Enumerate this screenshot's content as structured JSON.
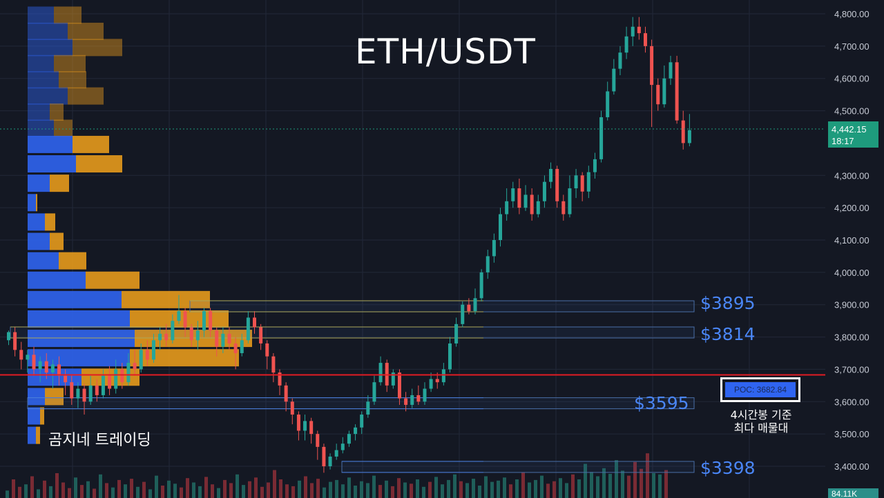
{
  "title": "ETH/USDT",
  "watermark": "곰지네 트레이딩",
  "poc": {
    "label": "POC: 3682.84",
    "value": 3682.84,
    "note_line1": "4시간봉 기준",
    "note_line2": "최다 매물대"
  },
  "current_price": {
    "value": "4,442.15",
    "countdown": "18:17"
  },
  "volume_label": "84.11K",
  "levels": [
    {
      "label": "$3895",
      "price": 3895,
      "color": "#d8c23a"
    },
    {
      "label": "$3814",
      "price": 3814,
      "color": "#d8c23a"
    },
    {
      "label": "$3595",
      "price": 3595,
      "color": "#4a86f7"
    },
    {
      "label": "$3398",
      "price": 3398,
      "color": "#4a86f7"
    }
  ],
  "colors": {
    "up": "#26a69a",
    "down": "#ef5350",
    "poc_line": "#e31b23",
    "vp_blue": "#2f64f0",
    "vp_orange": "#e69a1c"
  },
  "chart_data": {
    "type": "candlestick",
    "y_axis": {
      "ticks": [
        "4,800.00",
        "4,700.00",
        "4,600.00",
        "4,500.00",
        "4,300.00",
        "4,200.00",
        "4,100.00",
        "4,000.00",
        "3,900.00",
        "3,800.00",
        "3,700.00",
        "3,600.00",
        "3,500.00",
        "3,400.00"
      ],
      "ylim": [
        3385,
        4830
      ]
    },
    "grid": true,
    "volume_profile": [
      {
        "price": 4800,
        "buy": 38,
        "sell": 40
      },
      {
        "price": 4750,
        "buy": 58,
        "sell": 52
      },
      {
        "price": 4700,
        "buy": 65,
        "sell": 72
      },
      {
        "price": 4650,
        "buy": 38,
        "sell": 46
      },
      {
        "price": 4600,
        "buy": 45,
        "sell": 40
      },
      {
        "price": 4550,
        "buy": 58,
        "sell": 52
      },
      {
        "price": 4500,
        "buy": 32,
        "sell": 20
      },
      {
        "price": 4450,
        "buy": 38,
        "sell": 27
      },
      {
        "price": 4400,
        "buy": 65,
        "sell": 53
      },
      {
        "price": 4340,
        "buy": 70,
        "sell": 67
      },
      {
        "price": 4280,
        "buy": 32,
        "sell": 28
      },
      {
        "price": 4220,
        "buy": 12,
        "sell": 2
      },
      {
        "price": 4160,
        "buy": 25,
        "sell": 15
      },
      {
        "price": 4100,
        "buy": 32,
        "sell": 20
      },
      {
        "price": 4040,
        "buy": 45,
        "sell": 40
      },
      {
        "price": 3980,
        "buy": 84,
        "sell": 78
      },
      {
        "price": 3920,
        "buy": 136,
        "sell": 128
      },
      {
        "price": 3860,
        "buy": 148,
        "sell": 143
      },
      {
        "price": 3800,
        "buy": 155,
        "sell": 170
      },
      {
        "price": 3740,
        "buy": 148,
        "sell": 158
      },
      {
        "price": 3680,
        "buy": 78,
        "sell": 84
      },
      {
        "price": 3620,
        "buy": 25,
        "sell": 27
      },
      {
        "price": 3560,
        "buy": 18,
        "sell": 6
      },
      {
        "price": 3500,
        "buy": 12,
        "sell": 6
      }
    ],
    "candles": [
      [
        3790,
        3815,
        3775,
        3820
      ],
      [
        3815,
        3760,
        3740,
        3830
      ],
      [
        3760,
        3730,
        3700,
        3785
      ],
      [
        3730,
        3745,
        3690,
        3760
      ],
      [
        3745,
        3700,
        3680,
        3770
      ],
      [
        3700,
        3725,
        3660,
        3740
      ],
      [
        3725,
        3690,
        3670,
        3750
      ],
      [
        3690,
        3715,
        3640,
        3730
      ],
      [
        3715,
        3680,
        3650,
        3740
      ],
      [
        3680,
        3660,
        3620,
        3700
      ],
      [
        3660,
        3610,
        3590,
        3680
      ],
      [
        3610,
        3640,
        3580,
        3660
      ],
      [
        3640,
        3600,
        3560,
        3655
      ],
      [
        3600,
        3650,
        3590,
        3680
      ],
      [
        3650,
        3620,
        3600,
        3670
      ],
      [
        3620,
        3680,
        3610,
        3700
      ],
      [
        3680,
        3640,
        3620,
        3710
      ],
      [
        3640,
        3700,
        3625,
        3730
      ],
      [
        3700,
        3660,
        3640,
        3720
      ],
      [
        3660,
        3720,
        3650,
        3750
      ],
      [
        3720,
        3700,
        3680,
        3760
      ],
      [
        3700,
        3760,
        3690,
        3780
      ],
      [
        3760,
        3730,
        3710,
        3790
      ],
      [
        3730,
        3790,
        3720,
        3810
      ],
      [
        3790,
        3810,
        3760,
        3830
      ],
      [
        3810,
        3790,
        3770,
        3840
      ],
      [
        3790,
        3850,
        3780,
        3870
      ],
      [
        3850,
        3880,
        3840,
        3930
      ],
      [
        3880,
        3830,
        3800,
        3890
      ],
      [
        3830,
        3790,
        3770,
        3840
      ],
      [
        3790,
        3820,
        3760,
        3850
      ],
      [
        3820,
        3880,
        3800,
        3890
      ],
      [
        3880,
        3820,
        3800,
        3890
      ],
      [
        3820,
        3770,
        3740,
        3830
      ],
      [
        3770,
        3810,
        3750,
        3830
      ],
      [
        3810,
        3780,
        3760,
        3830
      ],
      [
        3780,
        3750,
        3700,
        3800
      ],
      [
        3750,
        3790,
        3740,
        3810
      ],
      [
        3790,
        3860,
        3780,
        3880
      ],
      [
        3860,
        3830,
        3810,
        3880
      ],
      [
        3830,
        3780,
        3760,
        3840
      ],
      [
        3780,
        3740,
        3700,
        3790
      ],
      [
        3740,
        3690,
        3660,
        3750
      ],
      [
        3690,
        3650,
        3620,
        3700
      ],
      [
        3650,
        3600,
        3570,
        3660
      ],
      [
        3600,
        3560,
        3530,
        3610
      ],
      [
        3560,
        3510,
        3480,
        3570
      ],
      [
        3510,
        3540,
        3480,
        3560
      ],
      [
        3540,
        3500,
        3470,
        3550
      ],
      [
        3500,
        3460,
        3420,
        3510
      ],
      [
        3460,
        3400,
        3380,
        3470
      ],
      [
        3400,
        3430,
        3390,
        3440
      ],
      [
        3430,
        3450,
        3420,
        3470
      ],
      [
        3450,
        3470,
        3440,
        3490
      ],
      [
        3470,
        3500,
        3460,
        3510
      ],
      [
        3500,
        3520,
        3480,
        3530
      ],
      [
        3520,
        3560,
        3500,
        3570
      ],
      [
        3560,
        3600,
        3550,
        3620
      ],
      [
        3600,
        3660,
        3590,
        3680
      ],
      [
        3660,
        3720,
        3650,
        3740
      ],
      [
        3720,
        3650,
        3630,
        3730
      ],
      [
        3650,
        3690,
        3640,
        3700
      ],
      [
        3690,
        3610,
        3590,
        3700
      ],
      [
        3610,
        3590,
        3570,
        3630
      ],
      [
        3590,
        3620,
        3580,
        3640
      ],
      [
        3620,
        3600,
        3590,
        3650
      ],
      [
        3600,
        3640,
        3590,
        3660
      ],
      [
        3640,
        3670,
        3630,
        3690
      ],
      [
        3670,
        3660,
        3640,
        3690
      ],
      [
        3660,
        3700,
        3650,
        3720
      ],
      [
        3700,
        3780,
        3690,
        3800
      ],
      [
        3780,
        3840,
        3770,
        3860
      ],
      [
        3840,
        3900,
        3830,
        3910
      ],
      [
        3900,
        3880,
        3870,
        3920
      ],
      [
        3880,
        3920,
        3870,
        3950
      ],
      [
        3920,
        4000,
        3910,
        4010
      ],
      [
        4000,
        4050,
        3980,
        4070
      ],
      [
        4050,
        4100,
        4030,
        4120
      ],
      [
        4100,
        4180,
        4080,
        4200
      ],
      [
        4180,
        4220,
        4160,
        4260
      ],
      [
        4220,
        4260,
        4200,
        4280
      ],
      [
        4260,
        4200,
        4180,
        4290
      ],
      [
        4200,
        4240,
        4190,
        4270
      ],
      [
        4240,
        4180,
        4160,
        4260
      ],
      [
        4180,
        4220,
        4170,
        4240
      ],
      [
        4220,
        4280,
        4200,
        4300
      ],
      [
        4280,
        4320,
        4260,
        4340
      ],
      [
        4320,
        4220,
        4200,
        4330
      ],
      [
        4220,
        4180,
        4160,
        4240
      ],
      [
        4180,
        4260,
        4170,
        4300
      ],
      [
        4260,
        4300,
        4230,
        4320
      ],
      [
        4300,
        4250,
        4220,
        4310
      ],
      [
        4250,
        4310,
        4230,
        4330
      ],
      [
        4310,
        4350,
        4290,
        4370
      ],
      [
        4350,
        4480,
        4340,
        4500
      ],
      [
        4480,
        4560,
        4470,
        4590
      ],
      [
        4560,
        4630,
        4550,
        4660
      ],
      [
        4630,
        4680,
        4610,
        4700
      ],
      [
        4680,
        4730,
        4660,
        4760
      ],
      [
        4730,
        4760,
        4700,
        4790
      ],
      [
        4760,
        4740,
        4720,
        4790
      ],
      [
        4740,
        4700,
        4680,
        4760
      ],
      [
        4700,
        4580,
        4450,
        4720
      ],
      [
        4580,
        4520,
        4500,
        4600
      ],
      [
        4520,
        4600,
        4510,
        4640
      ],
      [
        4600,
        4650,
        4580,
        4670
      ],
      [
        4650,
        4470,
        4460,
        4670
      ],
      [
        4470,
        4400,
        4380,
        4500
      ],
      [
        4400,
        4440,
        4390,
        4490
      ]
    ],
    "volume": [
      12,
      30,
      18,
      22,
      35,
      14,
      28,
      19,
      40,
      25,
      16,
      33,
      21,
      27,
      15,
      38,
      24,
      17,
      29,
      22,
      31,
      18,
      26,
      14,
      36,
      20,
      28,
      23,
      17,
      32,
      25,
      19,
      34,
      22,
      16,
      29,
      24,
      38,
      21,
      27,
      33,
      18,
      25,
      45,
      30,
      22,
      19,
      28,
      35,
      24,
      31,
      17,
      26,
      29,
      22,
      33,
      20,
      27,
      24,
      36,
      21,
      28,
      19,
      32,
      25,
      23,
      30,
      18,
      26,
      34,
      22,
      29,
      38,
      27,
      24,
      31,
      20,
      35,
      26,
      28,
      33,
      22,
      30,
      41,
      25,
      29,
      36,
      23,
      27,
      32,
      24,
      38,
      30,
      55,
      42,
      35,
      48,
      39,
      61,
      44,
      36,
      58,
      47,
      72,
      40,
      38,
      45
    ]
  }
}
